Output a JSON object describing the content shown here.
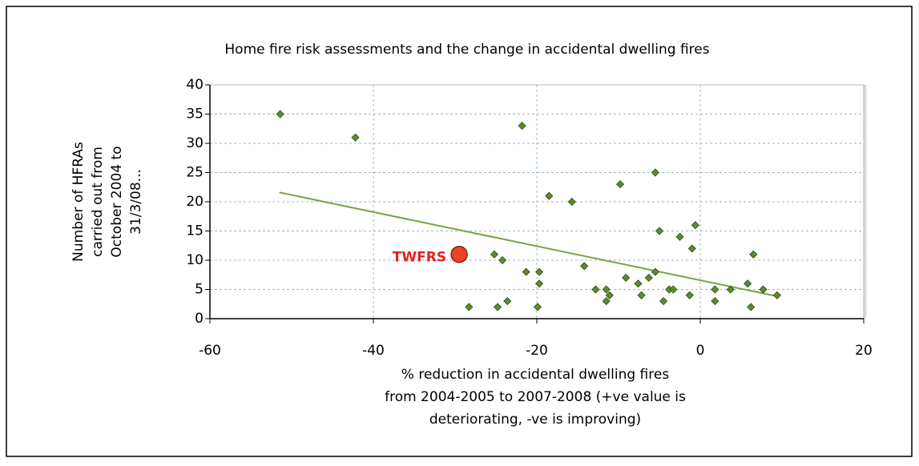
{
  "chart_data": {
    "type": "scatter",
    "title": "Home fire risk assessments and the change in accidental dwelling fires",
    "ylabel": [
      "Number of HFRAs",
      "carried out from",
      "October 2004 to",
      "31/3/08..."
    ],
    "xlabel": [
      "% reduction in accidental dwelling fires",
      "from 2004-2005 to 2007-2008 (+ve value is",
      "deteriorating, -ve is improving)"
    ],
    "xlim": [
      -60,
      20
    ],
    "xticks": [
      -60,
      -40,
      -20,
      0,
      20
    ],
    "ylim": [
      0,
      40
    ],
    "yticks": [
      0,
      5,
      10,
      15,
      20,
      25,
      30,
      35,
      40
    ],
    "grid": true,
    "series": [
      {
        "color": "#5f8a2e",
        "x": [
          -51.4,
          -42.2,
          -21.8,
          -28.3,
          -25.2,
          -24.8,
          -24.2,
          -23.6,
          -21.3,
          -19.9,
          -19.7,
          -19.7,
          -18.5,
          -15.7,
          -14.2,
          -12.8,
          -11.5,
          -11.5,
          -11.1,
          -9.8,
          -9.1,
          -7.6,
          -7.2,
          -6.3,
          -5.5,
          -5.5,
          -5.0,
          -4.5,
          -3.8,
          -3.3,
          -2.5,
          -1.3,
          -1.0,
          -0.6,
          1.8,
          1.8,
          3.7,
          5.8,
          6.2,
          6.5,
          7.7,
          9.4
        ],
        "values": [
          35,
          31,
          33,
          2,
          11,
          2,
          10,
          3,
          8,
          2,
          8,
          6,
          21,
          20,
          9,
          5,
          5,
          3,
          4,
          23,
          7,
          6,
          4,
          7,
          8,
          25,
          15,
          3,
          5,
          5,
          14,
          4,
          12,
          16,
          3,
          5,
          5,
          6,
          2,
          11,
          5,
          4
        ]
      }
    ],
    "trendline": {
      "color": "#7aa23e",
      "x": [
        -51.5,
        9.5
      ],
      "values": [
        21.6,
        3.8
      ]
    },
    "highlight": {
      "label": "TWFRS",
      "x": -29.5,
      "value": 11,
      "color": "#e8462c",
      "label_color": "#e0241c"
    }
  }
}
